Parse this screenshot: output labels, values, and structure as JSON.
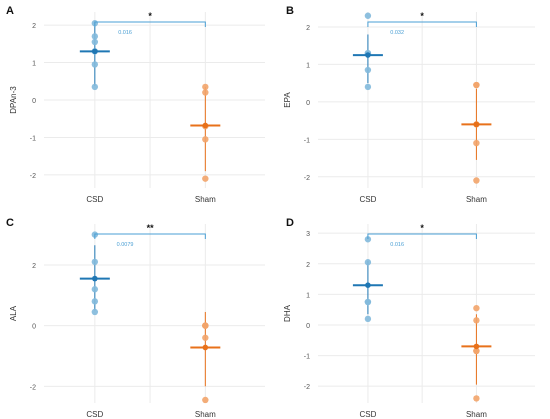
{
  "colors": {
    "csd": "#1f77b4",
    "sham": "#e8711a",
    "csd_point": "#82b9dc",
    "sham_point": "#f2a46a",
    "bracket": "#4a9fd4",
    "pvalue_text": "#4a9fd4",
    "grid": "#ebebeb",
    "text": "#333333"
  },
  "chart_data": [
    {
      "panel": "A",
      "type": "scatter",
      "ylabel": "DPAn-3",
      "categories": [
        "CSD",
        "Sham"
      ],
      "ylim": [
        -2.35,
        2.35
      ],
      "yticks": [
        -2,
        -1,
        0,
        1,
        2
      ],
      "grid": true,
      "groups": [
        {
          "name": "CSD",
          "points": [
            2.05,
            1.7,
            1.55,
            1.3,
            0.95,
            0.35
          ],
          "mean": 1.3,
          "ci": [
            0.38,
            2.08
          ]
        },
        {
          "name": "Sham",
          "points": [
            0.35,
            0.2,
            -0.7,
            -1.05,
            -2.1
          ],
          "mean": -0.68,
          "ci": [
            -1.9,
            0.35
          ]
        }
      ],
      "significance": {
        "stars": "*",
        "p": "0.016"
      }
    },
    {
      "panel": "B",
      "type": "scatter",
      "ylabel": "EPA",
      "categories": [
        "CSD",
        "Sham"
      ],
      "ylim": [
        -2.3,
        2.4
      ],
      "yticks": [
        -2,
        -1,
        0,
        1,
        2
      ],
      "grid": true,
      "groups": [
        {
          "name": "CSD",
          "points": [
            2.3,
            1.3,
            1.3,
            0.85,
            0.4
          ],
          "mean": 1.25,
          "ci": [
            0.5,
            1.8
          ]
        },
        {
          "name": "Sham",
          "points": [
            0.45,
            0.45,
            -0.6,
            -1.1,
            -2.1
          ],
          "mean": -0.6,
          "ci": [
            -1.55,
            0.35
          ]
        }
      ],
      "significance": {
        "stars": "*",
        "p": "0.032"
      }
    },
    {
      "panel": "C",
      "type": "scatter",
      "ylabel": "ALA",
      "categories": [
        "CSD",
        "Sham"
      ],
      "ylim": [
        -2.55,
        3.35
      ],
      "yticks": [
        -2,
        0,
        2
      ],
      "grid": true,
      "groups": [
        {
          "name": "CSD",
          "points": [
            3.0,
            2.1,
            1.2,
            0.8,
            0.45
          ],
          "mean": 1.55,
          "ci": [
            0.5,
            2.65
          ]
        },
        {
          "name": "Sham",
          "points": [
            0.0,
            0.0,
            0.0,
            -0.4,
            -2.45
          ],
          "mean": -0.72,
          "ci": [
            -2.0,
            0.45
          ]
        }
      ],
      "significance": {
        "stars": "**",
        "p": "0.0079"
      }
    },
    {
      "panel": "D",
      "type": "scatter",
      "ylabel": "DHA",
      "categories": [
        "CSD",
        "Sham"
      ],
      "ylim": [
        -2.55,
        3.3
      ],
      "yticks": [
        -2,
        -1,
        0,
        1,
        2,
        3
      ],
      "grid": true,
      "groups": [
        {
          "name": "CSD",
          "points": [
            2.8,
            2.05,
            0.75,
            0.75,
            0.2
          ],
          "mean": 1.3,
          "ci": [
            0.35,
            2.1
          ]
        },
        {
          "name": "Sham",
          "points": [
            0.55,
            0.15,
            -0.85,
            -0.85,
            -2.4
          ],
          "mean": -0.7,
          "ci": [
            -1.95,
            0.35
          ]
        }
      ],
      "significance": {
        "stars": "*",
        "p": "0.016"
      }
    }
  ]
}
